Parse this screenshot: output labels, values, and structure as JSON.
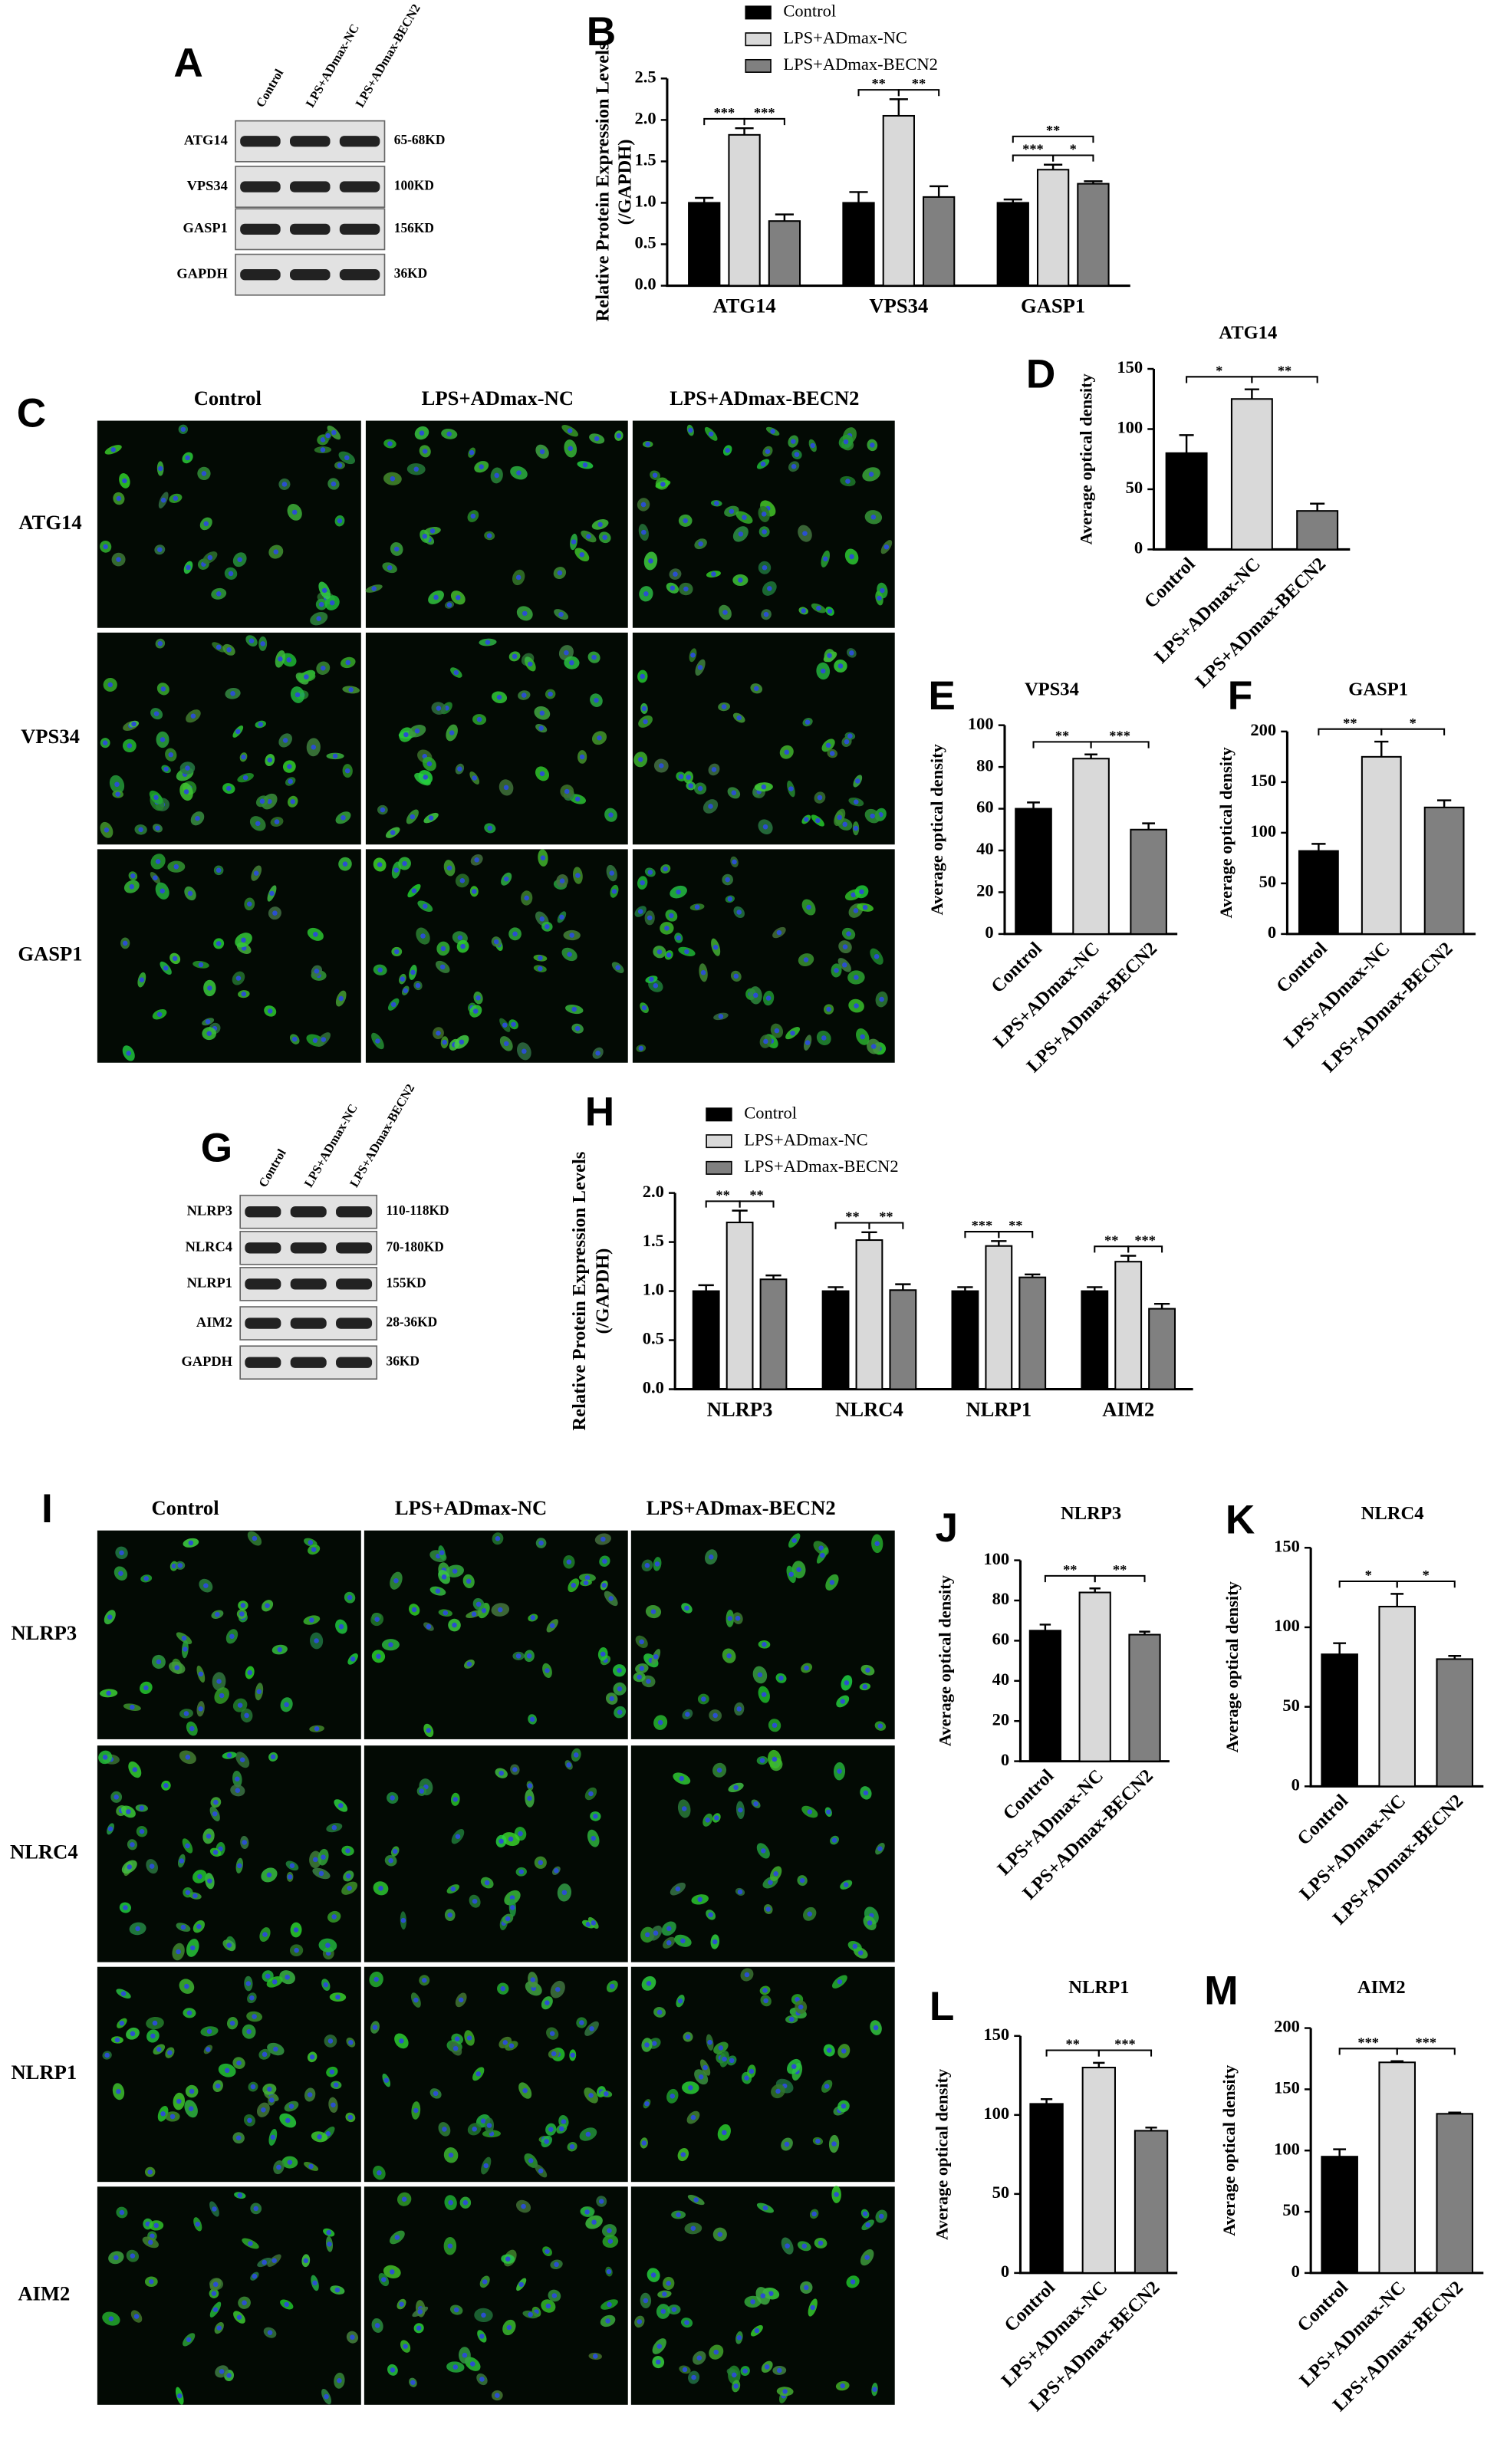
{
  "panel_letters": [
    "A",
    "B",
    "C",
    "D",
    "E",
    "F",
    "G",
    "H",
    "I",
    "J",
    "K",
    "L",
    "M"
  ],
  "blots": [
    {
      "lanes": [
        "Control",
        "LPS+ADmax-NC",
        "LPS+ADmax-BECN2"
      ],
      "rows": [
        {
          "protein": "ATG14",
          "size": "65-68KD"
        },
        {
          "protein": "VPS34",
          "size": "100KD"
        },
        {
          "protein": "GASP1",
          "size": "156KD"
        },
        {
          "protein": "GAPDH",
          "size": "36KD"
        }
      ]
    },
    {
      "lanes": [
        "Control",
        "LPS+ADmax-NC",
        "LPS+ADmax-BECN2"
      ],
      "rows": [
        {
          "protein": "NLRP3",
          "size": "110-118KD"
        },
        {
          "protein": "NLRC4",
          "size": "70-180KD"
        },
        {
          "protein": "NLRP1",
          "size": "155KD"
        },
        {
          "protein": "AIM2",
          "size": "28-36KD"
        },
        {
          "protein": "GAPDH",
          "size": "36KD"
        }
      ]
    }
  ],
  "micrographs": [
    {
      "columns": [
        "Control",
        "LPS+ADmax-NC",
        "LPS+ADmax-BECN2"
      ],
      "rows": [
        "ATG14",
        "VPS34",
        "GASP1"
      ]
    },
    {
      "columns": [
        "Control",
        "LPS+ADmax-NC",
        "LPS+ADmax-BECN2"
      ],
      "rows": [
        "NLRP3",
        "NLRC4",
        "NLRP1",
        "AIM2"
      ]
    }
  ],
  "chart_data": [
    {
      "type": "bar",
      "y_label": [
        "Relative Protein Expression Levels",
        "(/GAPDH)"
      ],
      "categories": [
        "ATG14",
        "VPS34",
        "GASP1"
      ],
      "series": [
        {
          "name": "Control",
          "color": "#000000",
          "values": [
            1.0,
            1.0,
            1.0
          ],
          "errors": [
            0.06,
            0.13,
            0.04
          ]
        },
        {
          "name": "LPS+ADmax-NC",
          "color": "#d9d9d9",
          "values": [
            1.82,
            2.05,
            1.4
          ],
          "errors": [
            0.08,
            0.2,
            0.06
          ]
        },
        {
          "name": "LPS+ADmax-BECN2",
          "color": "#808080",
          "values": [
            0.78,
            1.07,
            1.23
          ],
          "errors": [
            0.08,
            0.13,
            0.03
          ]
        }
      ],
      "significance": [
        [
          "***",
          "***"
        ],
        [
          "**",
          "**"
        ],
        [
          "***",
          "*",
          "**"
        ]
      ],
      "ylim": [
        0,
        2.5
      ],
      "yticks": [
        {
          "value": 0,
          "label": "0.0"
        },
        {
          "value": 0.5,
          "label": "0.5"
        },
        {
          "value": 1,
          "label": "1.0"
        },
        {
          "value": 1.5,
          "label": "1.5"
        },
        {
          "value": 2,
          "label": "2.0"
        },
        {
          "value": 2.5,
          "label": "2.5"
        }
      ]
    },
    {
      "type": "bar",
      "title": "ATG14",
      "y_label": [
        "Average optical density"
      ],
      "categories": [
        "Control",
        "LPS+ADmax-NC",
        "LPS+ADmax-BECN2"
      ],
      "colors": [
        "#000000",
        "#d9d9d9",
        "#808080"
      ],
      "values": [
        80,
        125,
        32
      ],
      "errors": [
        15,
        8,
        6
      ],
      "significance": [
        "*",
        "**"
      ],
      "ylim": [
        0,
        150
      ],
      "yticks": [
        0,
        50,
        100,
        150
      ]
    },
    {
      "type": "bar",
      "title": "VPS34",
      "y_label": [
        "Average optical density"
      ],
      "categories": [
        "Control",
        "LPS+ADmax-NC",
        "LPS+ADmax-BECN2"
      ],
      "colors": [
        "#000000",
        "#d9d9d9",
        "#808080"
      ],
      "values": [
        60,
        84,
        50
      ],
      "errors": [
        3,
        2,
        3
      ],
      "significance": [
        "**",
        "***"
      ],
      "ylim": [
        0,
        100
      ],
      "yticks": [
        0,
        20,
        40,
        60,
        80,
        100
      ]
    },
    {
      "type": "bar",
      "title": "GASP1",
      "y_label": [
        "Average optical density"
      ],
      "categories": [
        "Control",
        "LPS+ADmax-NC",
        "LPS+ADmax-BECN2"
      ],
      "colors": [
        "#000000",
        "#d9d9d9",
        "#808080"
      ],
      "values": [
        82,
        175,
        125
      ],
      "errors": [
        7,
        15,
        7
      ],
      "significance": [
        "**",
        "*"
      ],
      "ylim": [
        0,
        200
      ],
      "yticks": [
        0,
        50,
        100,
        150,
        200
      ]
    },
    {
      "type": "bar",
      "y_label": [
        "Relative Protein Expression Levels",
        "(/GAPDH)"
      ],
      "categories": [
        "NLRP3",
        "NLRC4",
        "NLRP1",
        "AIM2"
      ],
      "series": [
        {
          "name": "Control",
          "color": "#000000",
          "values": [
            1.0,
            1.0,
            1.0,
            1.0
          ],
          "errors": [
            0.06,
            0.04,
            0.04,
            0.04
          ]
        },
        {
          "name": "LPS+ADmax-NC",
          "color": "#d9d9d9",
          "values": [
            1.7,
            1.52,
            1.46,
            1.3
          ],
          "errors": [
            0.12,
            0.08,
            0.05,
            0.06
          ]
        },
        {
          "name": "LPS+ADmax-BECN2",
          "color": "#808080",
          "values": [
            1.12,
            1.01,
            1.14,
            0.82
          ],
          "errors": [
            0.04,
            0.06,
            0.03,
            0.05
          ]
        }
      ],
      "significance": [
        [
          "**",
          "**"
        ],
        [
          "**",
          "**"
        ],
        [
          "***",
          "**"
        ],
        [
          "**",
          "***"
        ]
      ],
      "ylim": [
        0,
        2
      ],
      "yticks": [
        {
          "value": 0,
          "label": "0.0"
        },
        {
          "value": 0.5,
          "label": "0.5"
        },
        {
          "value": 1,
          "label": "1.0"
        },
        {
          "value": 1.5,
          "label": "1.5"
        },
        {
          "value": 2,
          "label": "2.0"
        }
      ]
    },
    {
      "type": "bar",
      "title": "NLRP3",
      "y_label": [
        "Average optical density"
      ],
      "categories": [
        "Control",
        "LPS+ADmax-NC",
        "LPS+ADmax-BECN2"
      ],
      "colors": [
        "#000000",
        "#d9d9d9",
        "#808080"
      ],
      "values": [
        65,
        84,
        63
      ],
      "errors": [
        3,
        2,
        1.5
      ],
      "significance": [
        "**",
        "**"
      ],
      "ylim": [
        0,
        100
      ],
      "yticks": [
        0,
        20,
        40,
        60,
        80,
        100
      ]
    },
    {
      "type": "bar",
      "title": "NLRC4",
      "y_label": [
        "Average optical density"
      ],
      "categories": [
        "Control",
        "LPS+ADmax-NC",
        "LPS+ADmax-BECN2"
      ],
      "colors": [
        "#000000",
        "#d9d9d9",
        "#808080"
      ],
      "values": [
        83,
        113,
        80
      ],
      "errors": [
        7,
        8,
        2
      ],
      "significance": [
        "*",
        "*"
      ],
      "ylim": [
        0,
        150
      ],
      "yticks": [
        0,
        50,
        100,
        150
      ]
    },
    {
      "type": "bar",
      "title": "NLRP1",
      "y_label": [
        "Average optical density"
      ],
      "categories": [
        "Control",
        "LPS+ADmax-NC",
        "LPS+ADmax-BECN2"
      ],
      "colors": [
        "#000000",
        "#d9d9d9",
        "#808080"
      ],
      "values": [
        107,
        130,
        90
      ],
      "errors": [
        3,
        3,
        2
      ],
      "significance": [
        "**",
        "***"
      ],
      "ylim": [
        0,
        150
      ],
      "yticks": [
        0,
        50,
        100,
        150
      ]
    },
    {
      "type": "bar",
      "title": "AIM2",
      "y_label": [
        "Average optical density"
      ],
      "categories": [
        "Control",
        "LPS+ADmax-NC",
        "LPS+ADmax-BECN2"
      ],
      "colors": [
        "#000000",
        "#d9d9d9",
        "#808080"
      ],
      "values": [
        95,
        172,
        130
      ],
      "errors": [
        6,
        1,
        1
      ],
      "significance": [
        "***",
        "***"
      ],
      "ylim": [
        0,
        200
      ],
      "yticks": [
        0,
        50,
        100,
        150,
        200
      ]
    }
  ]
}
